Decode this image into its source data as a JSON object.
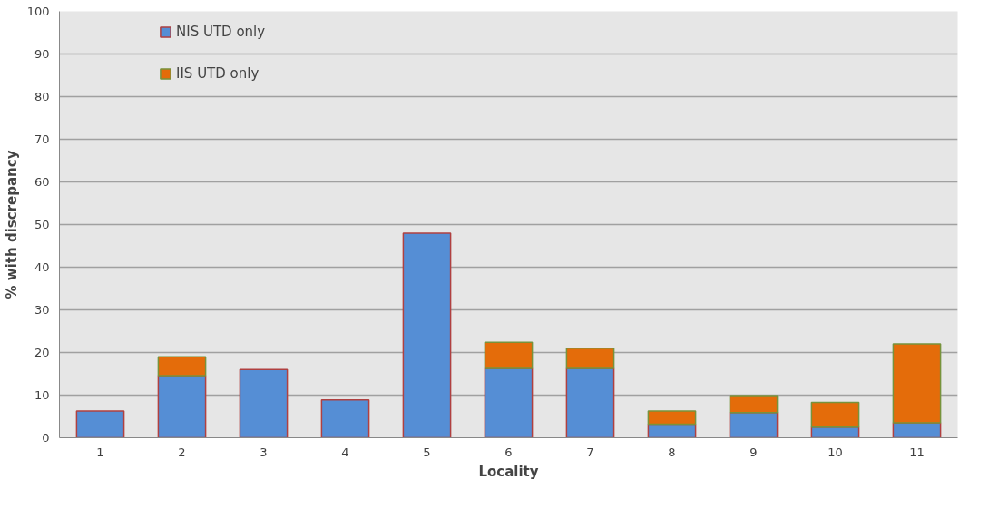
{
  "chart_data": {
    "type": "bar",
    "stacked": true,
    "xlabel": "Locality",
    "ylabel": "% with discrepancy",
    "categories": [
      "1",
      "2",
      "3",
      "4",
      "5",
      "6",
      "7",
      "8",
      "9",
      "10",
      "11"
    ],
    "series": [
      {
        "name": "NIS UTD only",
        "color": "#558ed5",
        "values": [
          6.3,
          14.6,
          16.0,
          8.9,
          48.0,
          16.3,
          16.3,
          3.2,
          5.9,
          2.5,
          3.5
        ]
      },
      {
        "name": "IIS UTD only",
        "color": "#e46c0a",
        "values": [
          null,
          4.4,
          null,
          null,
          null,
          6.1,
          4.7,
          3.1,
          4.0,
          5.8,
          18.5
        ]
      }
    ],
    "ylim": [
      0,
      100
    ],
    "yticks": [
      0,
      10,
      20,
      30,
      40,
      50,
      60,
      70,
      80,
      90,
      100
    ],
    "grid": "y",
    "legend": "top left"
  }
}
